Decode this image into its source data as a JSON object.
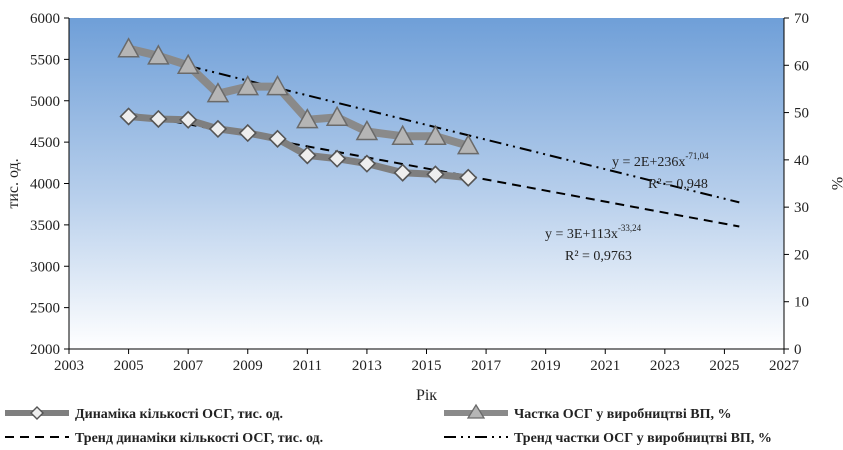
{
  "chart_data": {
    "type": "line",
    "xlabel": "Рік",
    "ylabel_left": "тис. од.",
    "ylabel_right": "%",
    "xlim": [
      2003,
      2027
    ],
    "ylim_left": [
      2000,
      6000
    ],
    "ylim_right": [
      0,
      70
    ],
    "xticks": [
      "2003",
      "2005",
      "2007",
      "2009",
      "2011",
      "2013",
      "2015",
      "2017",
      "2019",
      "2021",
      "2023",
      "2025",
      "2027"
    ],
    "yticks_left": [
      "2000",
      "2500",
      "3000",
      "3500",
      "4000",
      "4500",
      "5000",
      "5500",
      "6000"
    ],
    "yticks_right": [
      "0",
      "10",
      "20",
      "30",
      "40",
      "50",
      "60",
      "70"
    ],
    "grid": false,
    "series": [
      {
        "name": "Динаміка кількості ОСГ, тис. од.",
        "axis": "left",
        "style": "line-diamond",
        "color": "#7f7f7f",
        "x": [
          2005,
          2006,
          2007,
          2008,
          2009,
          2010,
          2011,
          2012,
          2013,
          2014.2,
          2015.3,
          2016.4
        ],
        "y": [
          4810,
          4780,
          4770,
          4660,
          4610,
          4540,
          4340,
          4300,
          4240,
          4130,
          4110,
          4070
        ]
      },
      {
        "name": "Частка ОСГ у виробництві ВП, %",
        "axis": "right",
        "style": "line-triangle",
        "color": "#8c8c8c",
        "x": [
          2005,
          2006,
          2007,
          2008,
          2009,
          2010,
          2011,
          2012,
          2013,
          2014.2,
          2015.3,
          2016.4
        ],
        "y": [
          63.5,
          62,
          60,
          54,
          55.5,
          55.5,
          48.5,
          49,
          46,
          45,
          45,
          43
        ]
      },
      {
        "name": "Тренд динаміки кількості ОСГ, тис. од.",
        "axis": "left",
        "style": "dashed",
        "color": "#000000",
        "x": [
          2005,
          2025.5
        ],
        "y": [
          4850,
          3480
        ]
      },
      {
        "name": "Тренд частки ОСГ у виробництві ВП, %",
        "axis": "right",
        "style": "dash-dot",
        "color": "#000000",
        "x": [
          2005,
          2025.5
        ],
        "y": [
          63,
          31
        ]
      }
    ],
    "annotations": [
      {
        "id": "eq1",
        "text": "y = 2E+236x",
        "sup": "-71,04"
      },
      {
        "id": "r1",
        "text": "R² = 0,948"
      },
      {
        "id": "eq2",
        "text": "y = 3E+113x",
        "sup": "-33,24"
      },
      {
        "id": "r2",
        "text": "R² = 0,9763"
      }
    ]
  },
  "colors": {
    "plot_bg_top": "#6f9fd8",
    "plot_bg_bottom": "#ffffff",
    "axis": "#000000",
    "series_line": "#8a8a8a",
    "marker_fill": "#d9d9d9",
    "marker_stroke": "#6e6e6e"
  }
}
